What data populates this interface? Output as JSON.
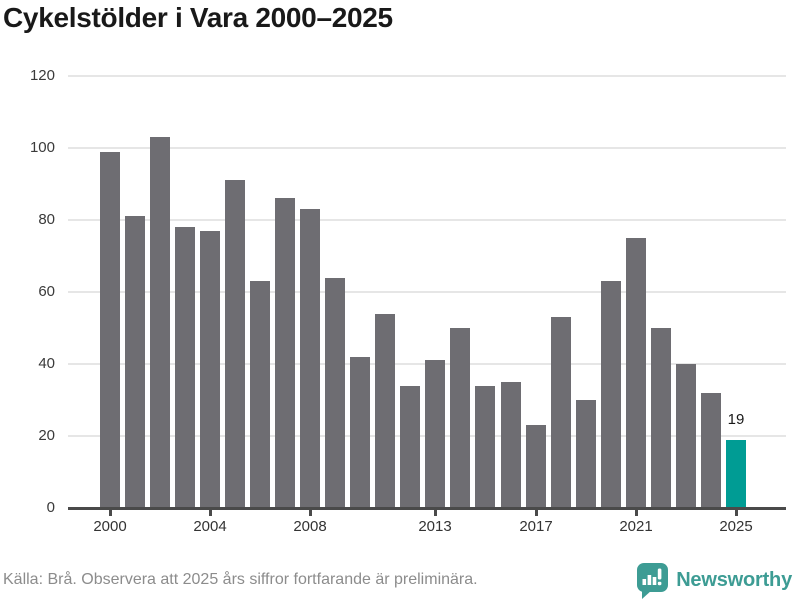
{
  "title": "Cykelstölder i Vara 2000–2025",
  "chart_data": {
    "type": "bar",
    "title": "Cykelstölder i Vara 2000–2025",
    "categories": [
      2000,
      2001,
      2002,
      2003,
      2004,
      2005,
      2006,
      2007,
      2008,
      2009,
      2010,
      2011,
      2012,
      2013,
      2014,
      2015,
      2016,
      2017,
      2018,
      2019,
      2020,
      2021,
      2022,
      2023,
      2024,
      2025
    ],
    "values": [
      99,
      81,
      103,
      78,
      77,
      91,
      63,
      86,
      83,
      64,
      42,
      54,
      34,
      41,
      50,
      34,
      35,
      23,
      53,
      30,
      63,
      75,
      50,
      40,
      32,
      19
    ],
    "x_tick_labels": [
      "2000",
      "2004",
      "2008",
      "2013",
      "2017",
      "2021",
      "2025"
    ],
    "y_ticks": [
      0,
      20,
      40,
      60,
      80,
      100,
      120
    ],
    "ylim": [
      0,
      120
    ],
    "grid": "horizontal",
    "legend": "none",
    "bar_color": "#6e6d72",
    "highlight": {
      "year": 2025,
      "value": 19,
      "label": "19",
      "color": "#009c94"
    }
  },
  "footer": {
    "source": "Källa: Brå. Observera att 2025 års siffror fortfarande är preliminära.",
    "logo_text": "Newsworthy"
  },
  "colors": {
    "bar": "#6e6d72",
    "highlight": "#009c94",
    "logo_teal": "#3d9c94",
    "gridline": "#e6e6e6",
    "axis": "#4a4a4a",
    "title_text": "#191919",
    "tick_text": "#333333",
    "source_text": "#8c8c8c"
  }
}
